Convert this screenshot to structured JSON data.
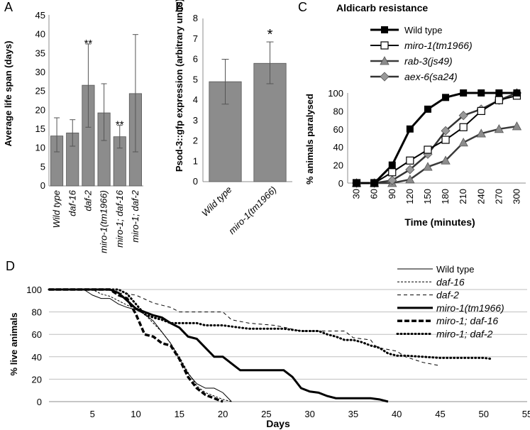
{
  "panels": {
    "A": "A",
    "B": "B",
    "C": "C",
    "D": "D"
  },
  "chart_data": [
    {
      "id": "A",
      "type": "bar",
      "ylabel": "Average life span (days)",
      "ylim": [
        0,
        45
      ],
      "yticks": [
        "0",
        "5",
        "10",
        "15",
        "20",
        "25",
        "30",
        "35",
        "40",
        "45"
      ],
      "categories": [
        "Wild type",
        "daf-16",
        "daf-2",
        "miro-1(tm1966)",
        "miro-1; daf-16",
        "miro-1; daf-2"
      ],
      "values": [
        13.2,
        14,
        26.6,
        19.3,
        13,
        24.4
      ],
      "errors": [
        [
          9,
          18
        ],
        [
          10.5,
          17.5
        ],
        [
          15.5,
          37.5
        ],
        [
          12,
          27
        ],
        [
          10,
          16
        ],
        [
          9,
          40
        ]
      ],
      "annotations": [
        "",
        "",
        "**",
        "",
        "**",
        ""
      ],
      "bar_color": "#8c8c8c"
    },
    {
      "id": "B",
      "type": "bar",
      "ylabel": "Psod-3::gfp expression (arbitrary units)",
      "ylim": [
        0,
        8
      ],
      "yticks": [
        "0",
        "1",
        "2",
        "3",
        "4",
        "5",
        "6",
        "7",
        "8"
      ],
      "categories": [
        "Wild type",
        "miro-1(tm1966)"
      ],
      "values": [
        4.9,
        5.8
      ],
      "errors": [
        [
          3.8,
          6
        ],
        [
          4.8,
          6.85
        ]
      ],
      "annotations": [
        "",
        "*"
      ],
      "bar_color": "#8c8c8c"
    },
    {
      "id": "C",
      "type": "line",
      "title": "Aldicarb resistance",
      "xlabel": "Time (minutes)",
      "ylabel": "% animals paralysed",
      "ylim": [
        0,
        100
      ],
      "yticks": [
        "0",
        "20",
        "40",
        "60",
        "80",
        "100"
      ],
      "x": [
        "30",
        "60",
        "90",
        "120",
        "150",
        "180",
        "210",
        "240",
        "270",
        "300"
      ],
      "series": [
        {
          "name": "Wild type",
          "marker": "square-filled",
          "values": [
            0,
            0,
            20,
            60,
            82,
            95,
            100,
            100,
            100,
            100
          ]
        },
        {
          "name": "miro-1(tm1966)",
          "marker": "square-open",
          "values": [
            0,
            0,
            12,
            25,
            37,
            48,
            62,
            80,
            92,
            97
          ]
        },
        {
          "name": "rab-3(js49)",
          "marker": "triangle",
          "values": [
            0,
            0,
            0,
            4,
            18,
            25,
            45,
            55,
            60,
            63
          ]
        },
        {
          "name": "aex-6(sa24)",
          "marker": "diamond",
          "values": [
            0,
            0,
            3,
            15,
            32,
            58,
            75,
            82,
            92,
            100
          ]
        }
      ]
    },
    {
      "id": "D",
      "type": "line",
      "xlabel": "Days",
      "ylabel": "% live animals",
      "xlim": [
        0,
        55
      ],
      "ylim": [
        0,
        100
      ],
      "xticks": [
        "5",
        "10",
        "15",
        "20",
        "25",
        "30",
        "35",
        "40",
        "45",
        "50",
        "55"
      ],
      "yticks": [
        "0",
        "20",
        "40",
        "60",
        "80",
        "100"
      ],
      "series": [
        {
          "name": "Wild type",
          "style": "thin",
          "points": [
            [
              0,
              100
            ],
            [
              4,
              100
            ],
            [
              5,
              95
            ],
            [
              6,
              92
            ],
            [
              7,
              92
            ],
            [
              8,
              87
            ],
            [
              9,
              84
            ],
            [
              10,
              82
            ],
            [
              11,
              78
            ],
            [
              12,
              72
            ],
            [
              13,
              62
            ],
            [
              14,
              52
            ],
            [
              15,
              38
            ],
            [
              16,
              25
            ],
            [
              17,
              16
            ],
            [
              18,
              12
            ],
            [
              19,
              12
            ],
            [
              20,
              8
            ],
            [
              21,
              0
            ]
          ]
        },
        {
          "name": "daf-16",
          "style": "dashed-thin",
          "points": [
            [
              0,
              100
            ],
            [
              5,
              100
            ],
            [
              6,
              96
            ],
            [
              7,
              94
            ],
            [
              8,
              90
            ],
            [
              9,
              86
            ],
            [
              10,
              83
            ],
            [
              11,
              78
            ],
            [
              12,
              70
            ],
            [
              13,
              62
            ],
            [
              14,
              52
            ],
            [
              15,
              40
            ],
            [
              16,
              26
            ],
            [
              17,
              14
            ],
            [
              18,
              8
            ],
            [
              19,
              5
            ],
            [
              20,
              2
            ],
            [
              21,
              0
            ]
          ]
        },
        {
          "name": "daf-2",
          "style": "dashed-sparse",
          "points": [
            [
              0,
              100
            ],
            [
              7,
              100
            ],
            [
              8,
              97
            ],
            [
              10,
              95
            ],
            [
              12,
              88
            ],
            [
              14,
              84
            ],
            [
              15,
              80
            ],
            [
              17,
              80
            ],
            [
              20,
              80
            ],
            [
              21,
              73
            ],
            [
              23,
              70
            ],
            [
              26,
              68
            ],
            [
              29,
              63
            ],
            [
              34,
              63
            ],
            [
              35,
              57
            ],
            [
              37,
              55
            ],
            [
              37.5,
              50
            ],
            [
              38,
              48
            ],
            [
              40,
              45
            ],
            [
              41,
              40
            ],
            [
              43,
              35
            ],
            [
              45,
              32
            ]
          ]
        },
        {
          "name": "miro-1(tm1966)",
          "style": "thick",
          "points": [
            [
              0,
              100
            ],
            [
              5,
              100
            ],
            [
              6,
              100
            ],
            [
              7,
              100
            ],
            [
              8,
              97
            ],
            [
              9,
              90
            ],
            [
              10,
              83
            ],
            [
              11,
              80
            ],
            [
              12,
              77
            ],
            [
              13,
              75
            ],
            [
              14,
              70
            ],
            [
              15,
              66
            ],
            [
              16,
              58
            ],
            [
              17,
              56
            ],
            [
              18,
              48
            ],
            [
              19,
              40
            ],
            [
              20,
              40
            ],
            [
              21,
              34
            ],
            [
              22,
              28
            ],
            [
              23,
              28
            ],
            [
              27,
              28
            ],
            [
              28,
              22
            ],
            [
              29,
              12
            ],
            [
              30,
              9
            ],
            [
              31,
              8
            ],
            [
              32,
              5
            ],
            [
              33,
              3
            ],
            [
              37,
              3
            ],
            [
              38,
              2
            ],
            [
              39,
              0
            ]
          ]
        },
        {
          "name": "miro-1; daf-16",
          "style": "dashed-thick",
          "points": [
            [
              0,
              100
            ],
            [
              7,
              100
            ],
            [
              8,
              95
            ],
            [
              9,
              92
            ],
            [
              10,
              78
            ],
            [
              11,
              60
            ],
            [
              12,
              58
            ],
            [
              13,
              52
            ],
            [
              14,
              50
            ],
            [
              15,
              38
            ],
            [
              16,
              22
            ],
            [
              17,
              12
            ],
            [
              18,
              6
            ],
            [
              19,
              3
            ],
            [
              20,
              0
            ]
          ]
        },
        {
          "name": "miro-1; daf-2",
          "style": "dotted",
          "points": [
            [
              0,
              100
            ],
            [
              8,
              100
            ],
            [
              9,
              96
            ],
            [
              10,
              87
            ],
            [
              11,
              78
            ],
            [
              12,
              75
            ],
            [
              13,
              73
            ],
            [
              14,
              70
            ],
            [
              15,
              70
            ],
            [
              17,
              70
            ],
            [
              18,
              68
            ],
            [
              20,
              68
            ],
            [
              23,
              65
            ],
            [
              27,
              65
            ],
            [
              29,
              63
            ],
            [
              31,
              63
            ],
            [
              32,
              60
            ],
            [
              33,
              58
            ],
            [
              34,
              55
            ],
            [
              35,
              55
            ],
            [
              36,
              53
            ],
            [
              37,
              50
            ],
            [
              38,
              48
            ],
            [
              39,
              43
            ],
            [
              40,
              41
            ],
            [
              41,
              41
            ],
            [
              43,
              40
            ],
            [
              45,
              39
            ],
            [
              48,
              39
            ],
            [
              50,
              39
            ],
            [
              51,
              38
            ]
          ]
        }
      ]
    }
  ]
}
